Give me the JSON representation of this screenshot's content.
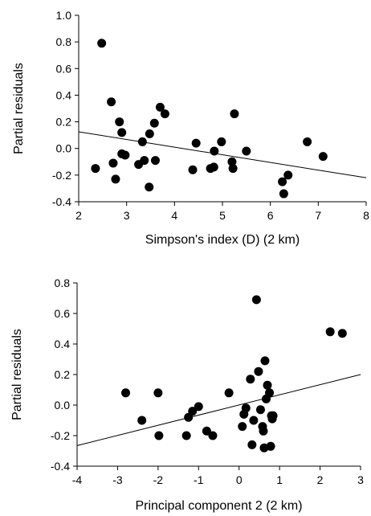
{
  "chart_data": [
    {
      "type": "scatter",
      "xlabel": "Simpson's index (D) (2 km)",
      "ylabel": "Partial residuals",
      "xlim": [
        2,
        8
      ],
      "ylim": [
        -0.4,
        1.0
      ],
      "xticks": [
        2,
        3,
        4,
        5,
        6,
        7,
        8
      ],
      "yticks": [
        -0.4,
        -0.2,
        0.0,
        0.2,
        0.4,
        0.6,
        0.8,
        1.0
      ],
      "xtick_labels": [
        "2",
        "3",
        "4",
        "5",
        "6",
        "7",
        "8"
      ],
      "ytick_labels": [
        "-0.4",
        "-0.2",
        "0.0",
        "0.2",
        "0.4",
        "0.6",
        "0.8",
        "1.0"
      ],
      "trendline": {
        "x": [
          2,
          8
        ],
        "y": [
          0.125,
          -0.22
        ]
      },
      "points": [
        {
          "x": 2.35,
          "y": -0.15
        },
        {
          "x": 2.48,
          "y": 0.79
        },
        {
          "x": 2.68,
          "y": 0.35
        },
        {
          "x": 2.72,
          "y": -0.11
        },
        {
          "x": 2.77,
          "y": -0.23
        },
        {
          "x": 2.85,
          "y": 0.2
        },
        {
          "x": 2.9,
          "y": 0.12
        },
        {
          "x": 2.9,
          "y": -0.04
        },
        {
          "x": 2.97,
          "y": -0.05
        },
        {
          "x": 3.25,
          "y": -0.12
        },
        {
          "x": 3.33,
          "y": 0.05
        },
        {
          "x": 3.37,
          "y": -0.09
        },
        {
          "x": 3.47,
          "y": -0.29
        },
        {
          "x": 3.48,
          "y": 0.11
        },
        {
          "x": 3.58,
          "y": 0.19
        },
        {
          "x": 3.6,
          "y": -0.09
        },
        {
          "x": 3.7,
          "y": 0.31
        },
        {
          "x": 3.8,
          "y": 0.26
        },
        {
          "x": 4.38,
          "y": -0.16
        },
        {
          "x": 4.45,
          "y": 0.04
        },
        {
          "x": 4.75,
          "y": -0.15
        },
        {
          "x": 4.82,
          "y": -0.14
        },
        {
          "x": 4.83,
          "y": -0.02
        },
        {
          "x": 4.98,
          "y": 0.05
        },
        {
          "x": 5.2,
          "y": -0.1
        },
        {
          "x": 5.22,
          "y": -0.15
        },
        {
          "x": 5.25,
          "y": 0.26
        },
        {
          "x": 5.5,
          "y": -0.02
        },
        {
          "x": 6.25,
          "y": -0.25
        },
        {
          "x": 6.28,
          "y": -0.34
        },
        {
          "x": 6.37,
          "y": -0.2
        },
        {
          "x": 6.77,
          "y": 0.05
        },
        {
          "x": 7.1,
          "y": -0.06
        }
      ]
    },
    {
      "type": "scatter",
      "xlabel": "Principal component 2 (2 km)",
      "ylabel": "Partial residuals",
      "xlim": [
        -4,
        3
      ],
      "ylim": [
        -0.4,
        0.8
      ],
      "xticks": [
        -4,
        -3,
        -2,
        -1,
        0,
        1,
        2,
        3
      ],
      "yticks": [
        -0.4,
        -0.2,
        0.0,
        0.2,
        0.4,
        0.6,
        0.8
      ],
      "xtick_labels": [
        "-4",
        "-3",
        "-2",
        "-1",
        "0",
        "1",
        "2",
        "3"
      ],
      "ytick_labels": [
        "-0.4",
        "-0.2",
        "0.0",
        "0.2",
        "0.4",
        "0.6",
        "0.8"
      ],
      "trendline": {
        "x": [
          -4,
          3
        ],
        "y": [
          -0.265,
          0.2
        ]
      },
      "points": [
        {
          "x": -2.8,
          "y": 0.08
        },
        {
          "x": -2.4,
          "y": -0.1
        },
        {
          "x": -2.0,
          "y": 0.08
        },
        {
          "x": -1.98,
          "y": -0.2
        },
        {
          "x": -1.3,
          "y": -0.2
        },
        {
          "x": -1.25,
          "y": -0.08
        },
        {
          "x": -1.15,
          "y": -0.04
        },
        {
          "x": -1.0,
          "y": -0.01
        },
        {
          "x": -0.8,
          "y": -0.17
        },
        {
          "x": -0.65,
          "y": -0.2
        },
        {
          "x": -0.25,
          "y": 0.08
        },
        {
          "x": 0.08,
          "y": -0.14
        },
        {
          "x": 0.12,
          "y": -0.06
        },
        {
          "x": 0.17,
          "y": -0.02
        },
        {
          "x": 0.28,
          "y": 0.17
        },
        {
          "x": 0.32,
          "y": -0.26
        },
        {
          "x": 0.36,
          "y": -0.1
        },
        {
          "x": 0.43,
          "y": 0.69
        },
        {
          "x": 0.48,
          "y": 0.22
        },
        {
          "x": 0.53,
          "y": -0.03
        },
        {
          "x": 0.58,
          "y": -0.14
        },
        {
          "x": 0.6,
          "y": -0.17
        },
        {
          "x": 0.62,
          "y": -0.28
        },
        {
          "x": 0.64,
          "y": 0.29
        },
        {
          "x": 0.67,
          "y": 0.04
        },
        {
          "x": 0.7,
          "y": 0.13
        },
        {
          "x": 0.75,
          "y": 0.08
        },
        {
          "x": 0.78,
          "y": -0.27
        },
        {
          "x": 0.8,
          "y": -0.07
        },
        {
          "x": 0.82,
          "y": -0.09
        },
        {
          "x": 0.84,
          "y": -0.07
        },
        {
          "x": 2.25,
          "y": 0.48
        },
        {
          "x": 2.55,
          "y": 0.47
        }
      ]
    }
  ]
}
